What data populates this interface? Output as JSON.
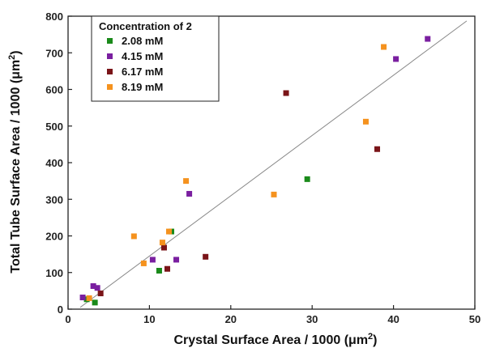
{
  "chart_data": {
    "type": "scatter",
    "xlabel_main": "Crystal Surface Area / 1000 (",
    "xlabel_unit": "μm",
    "xlabel_sup": "2",
    "xlabel_end": ")",
    "ylabel_main": "Total Tube Surface Area / 1000 (",
    "ylabel_unit": "μm",
    "ylabel_sup": "2",
    "ylabel_end": ")",
    "xlim": [
      0,
      50
    ],
    "ylim": [
      0,
      800
    ],
    "xticks": [
      0,
      10,
      20,
      30,
      40,
      50
    ],
    "yticks": [
      0,
      100,
      200,
      300,
      400,
      500,
      600,
      700,
      800
    ],
    "grid": false,
    "legend": {
      "title": "Concentration of 2",
      "placement": "top-left"
    },
    "fit_line": {
      "x": [
        1.5,
        49
      ],
      "y": [
        5,
        787
      ]
    },
    "series": [
      {
        "name": "2.08 mM",
        "color": "#1a8a1a",
        "points": [
          [
            2.3,
            27
          ],
          [
            3.3,
            18
          ],
          [
            11.2,
            105
          ],
          [
            12.7,
            212
          ],
          [
            29.4,
            355
          ]
        ]
      },
      {
        "name": "4.15 mM",
        "color": "#7a1fa0",
        "points": [
          [
            1.8,
            32
          ],
          [
            3.1,
            63
          ],
          [
            3.6,
            58
          ],
          [
            10.4,
            135
          ],
          [
            13.3,
            135
          ],
          [
            14.9,
            315
          ],
          [
            40.3,
            683
          ],
          [
            44.2,
            738
          ]
        ]
      },
      {
        "name": "6.17 mM",
        "color": "#7a1418",
        "points": [
          [
            4.0,
            43
          ],
          [
            11.8,
            168
          ],
          [
            12.2,
            110
          ],
          [
            16.9,
            143
          ],
          [
            26.8,
            590
          ],
          [
            38.0,
            437
          ]
        ]
      },
      {
        "name": "8.19 mM",
        "color": "#f5921e",
        "points": [
          [
            2.6,
            30
          ],
          [
            8.1,
            199
          ],
          [
            9.3,
            125
          ],
          [
            11.6,
            182
          ],
          [
            12.4,
            212
          ],
          [
            14.5,
            350
          ],
          [
            25.3,
            313
          ],
          [
            36.6,
            512
          ],
          [
            38.8,
            716
          ]
        ]
      }
    ]
  }
}
